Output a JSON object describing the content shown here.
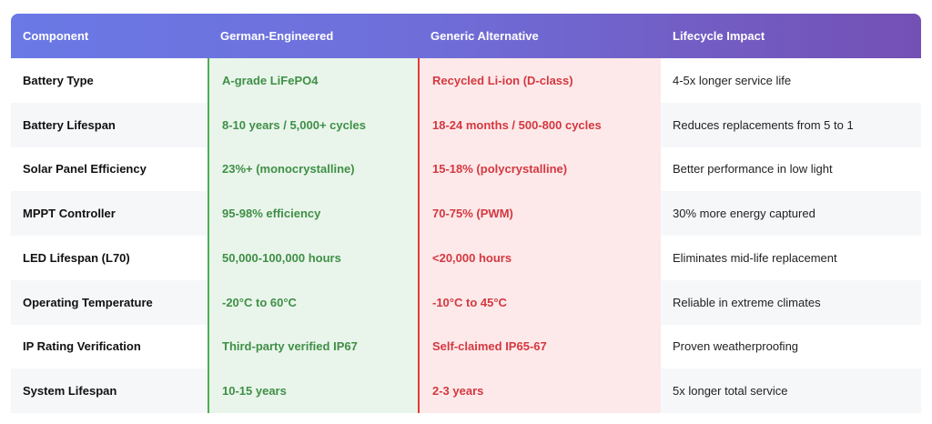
{
  "header": {
    "component": "Component",
    "german": "German-Engineered",
    "generic": "Generic Alternative",
    "impact": "Lifecycle Impact"
  },
  "rows": [
    {
      "component": "Battery Type",
      "german": "A-grade LiFePO4",
      "generic": "Recycled Li-ion (D-class)",
      "impact": "4-5x longer service life"
    },
    {
      "component": "Battery Lifespan",
      "german": "8-10 years / 5,000+ cycles",
      "generic": "18-24 months / 500-800 cycles",
      "impact": "Reduces replacements from 5 to 1"
    },
    {
      "component": "Solar Panel Efficiency",
      "german": "23%+ (monocrystalline)",
      "generic": "15-18% (polycrystalline)",
      "impact": "Better performance in low light"
    },
    {
      "component": "MPPT Controller",
      "german": "95-98% efficiency",
      "generic": "70-75% (PWM)",
      "impact": "30% more energy captured"
    },
    {
      "component": "LED Lifespan (L70)",
      "german": "50,000-100,000 hours",
      "generic": "<20,000 hours",
      "impact": "Eliminates mid-life replacement"
    },
    {
      "component": "Operating Temperature",
      "german": "-20°C to 60°C",
      "generic": "-10°C to 45°C",
      "impact": "Reliable in extreme climates"
    },
    {
      "component": "IP Rating Verification",
      "german": "Third-party verified IP67",
      "generic": "Self-claimed IP65-67",
      "impact": "Proven weatherproofing"
    },
    {
      "component": "System Lifespan",
      "german": "10-15 years",
      "generic": "2-3 years",
      "impact": "5x longer total service"
    }
  ],
  "colors": {
    "header_gradient_start": "#6a79e6",
    "header_gradient_end": "#7450b4",
    "german_text": "#3f8f46",
    "german_bg": "#e9f5eb",
    "generic_text": "#d4383f",
    "generic_bg": "#fde9ea"
  }
}
